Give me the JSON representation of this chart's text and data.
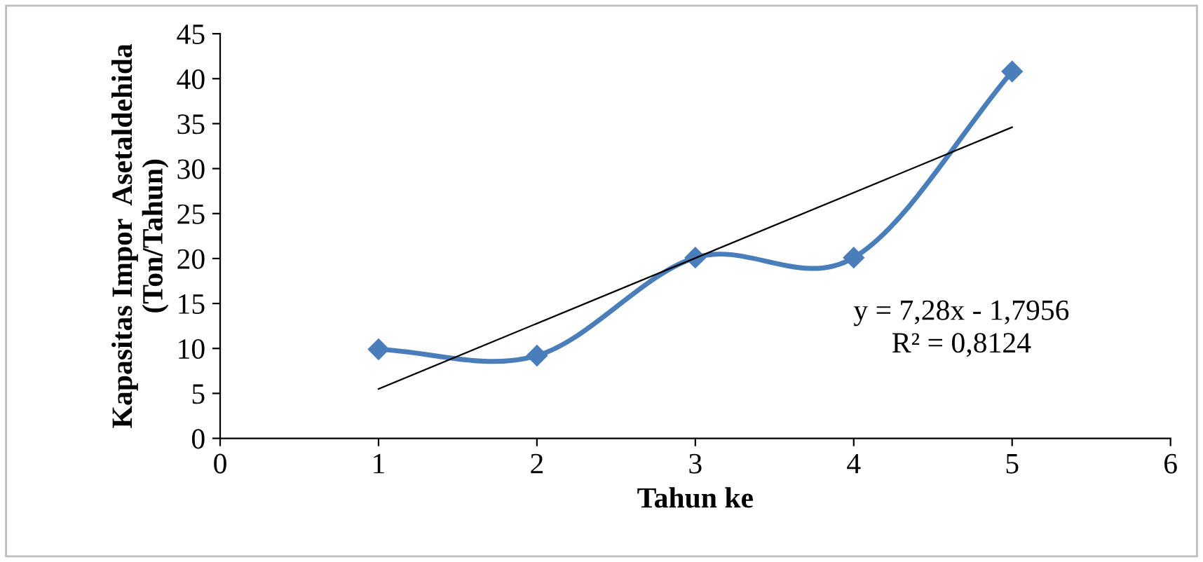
{
  "chart_data": {
    "type": "line",
    "xlabel": "Tahun ke",
    "ylabel": "Kapasitas Impor  Asetaldehida\n(Ton/Tahun)",
    "x": [
      1,
      2,
      3,
      4,
      5
    ],
    "series": [
      {
        "color": "#4a7ebb",
        "values": [
          9.9,
          9.2,
          20.1,
          20.1,
          40.8
        ],
        "marker": "diamond"
      },
      {
        "type": "line",
        "color": "#000000",
        "x": [
          1,
          5
        ],
        "values": [
          5.5,
          34.6
        ],
        "marker": "none"
      }
    ],
    "xlim": [
      0,
      6
    ],
    "xticks": [
      0,
      1,
      2,
      3,
      4,
      5,
      6
    ],
    "ylim": [
      0,
      45
    ],
    "yticks": [
      0,
      5,
      10,
      15,
      20,
      25,
      30,
      35,
      40,
      45
    ],
    "grid": false,
    "legend": false,
    "annotations": [
      "y = 7,28x - 1,7956\nR² = 0,8124"
    ]
  }
}
